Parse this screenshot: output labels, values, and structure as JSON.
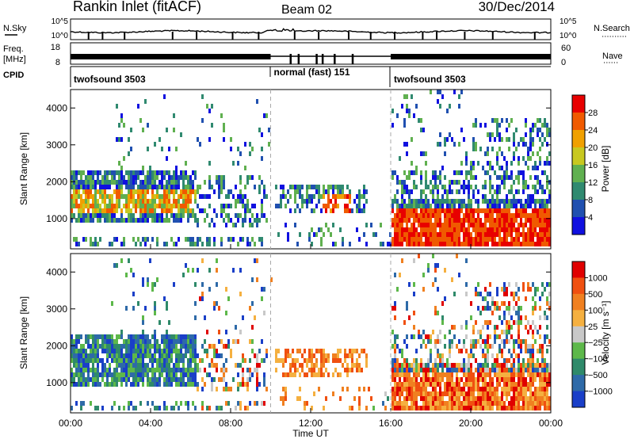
{
  "header": {
    "station": "Rankin Inlet (fitACF)",
    "beam": "Beam 02",
    "date": "30/Dec/2014"
  },
  "noise_panel": {
    "left_label": "N.Sky",
    "right_label": "N.Search",
    "left_ticks": [
      "10^5",
      "10^0"
    ],
    "right_ticks": [
      "10^5",
      "10^0"
    ]
  },
  "freq_panel": {
    "left_label_1": "Freq.",
    "left_label_2": "[MHz]",
    "right_label": "Nave",
    "left_ticks": [
      "18",
      "8"
    ],
    "right_ticks": [
      "60",
      "0"
    ]
  },
  "cpid_panel": {
    "label": "CPID",
    "modes": [
      {
        "name": "twofsound",
        "id": "3503",
        "start": 0,
        "end": 10
      },
      {
        "name": "normal (fast)",
        "id": "151",
        "start": 10,
        "end": 16
      },
      {
        "name": "twofsound",
        "id": "3503",
        "start": 16,
        "end": 24
      }
    ]
  },
  "chart_data": [
    {
      "type": "heatmap",
      "name": "power",
      "ylabel": "Slant Range [km]",
      "y_ticks": [
        "1000",
        "2000",
        "3000",
        "4000"
      ],
      "ylim": [
        180,
        4500
      ],
      "xlim": [
        0,
        24
      ],
      "colorbar_label": "Power [dB]",
      "colorbar_ticks": [
        "4",
        "8",
        "12",
        "16",
        "20",
        "24",
        "28"
      ],
      "colorbar_range": [
        0,
        32
      ],
      "colors": [
        "#1010e0",
        "#2050b0",
        "#308a70",
        "#60b050",
        "#c8c820",
        "#f0a000",
        "#f05a00",
        "#e80000"
      ]
    },
    {
      "type": "heatmap",
      "name": "velocity",
      "ylabel": "Slant Range [km]",
      "y_ticks": [
        "1000",
        "2000",
        "3000",
        "4000"
      ],
      "ylim": [
        180,
        4500
      ],
      "xlim": [
        0,
        24
      ],
      "x_ticks": [
        "00:00",
        "04:00",
        "08:00",
        "12:00",
        "16:00",
        "20:00",
        "00:00"
      ],
      "xlabel": "Time UT",
      "colorbar_label": "Velocity [m s⁻¹]",
      "colorbar_ticks": [
        "1000",
        "500",
        "100",
        "25",
        "−25",
        "−100",
        "−500",
        "−1000"
      ],
      "colors": [
        "#1a3fc8",
        "#2e6aa8",
        "#2f8a6a",
        "#5db84a",
        "#c8c8c8",
        "#f5b040",
        "#f08020",
        "#f05010",
        "#e00000"
      ]
    }
  ]
}
